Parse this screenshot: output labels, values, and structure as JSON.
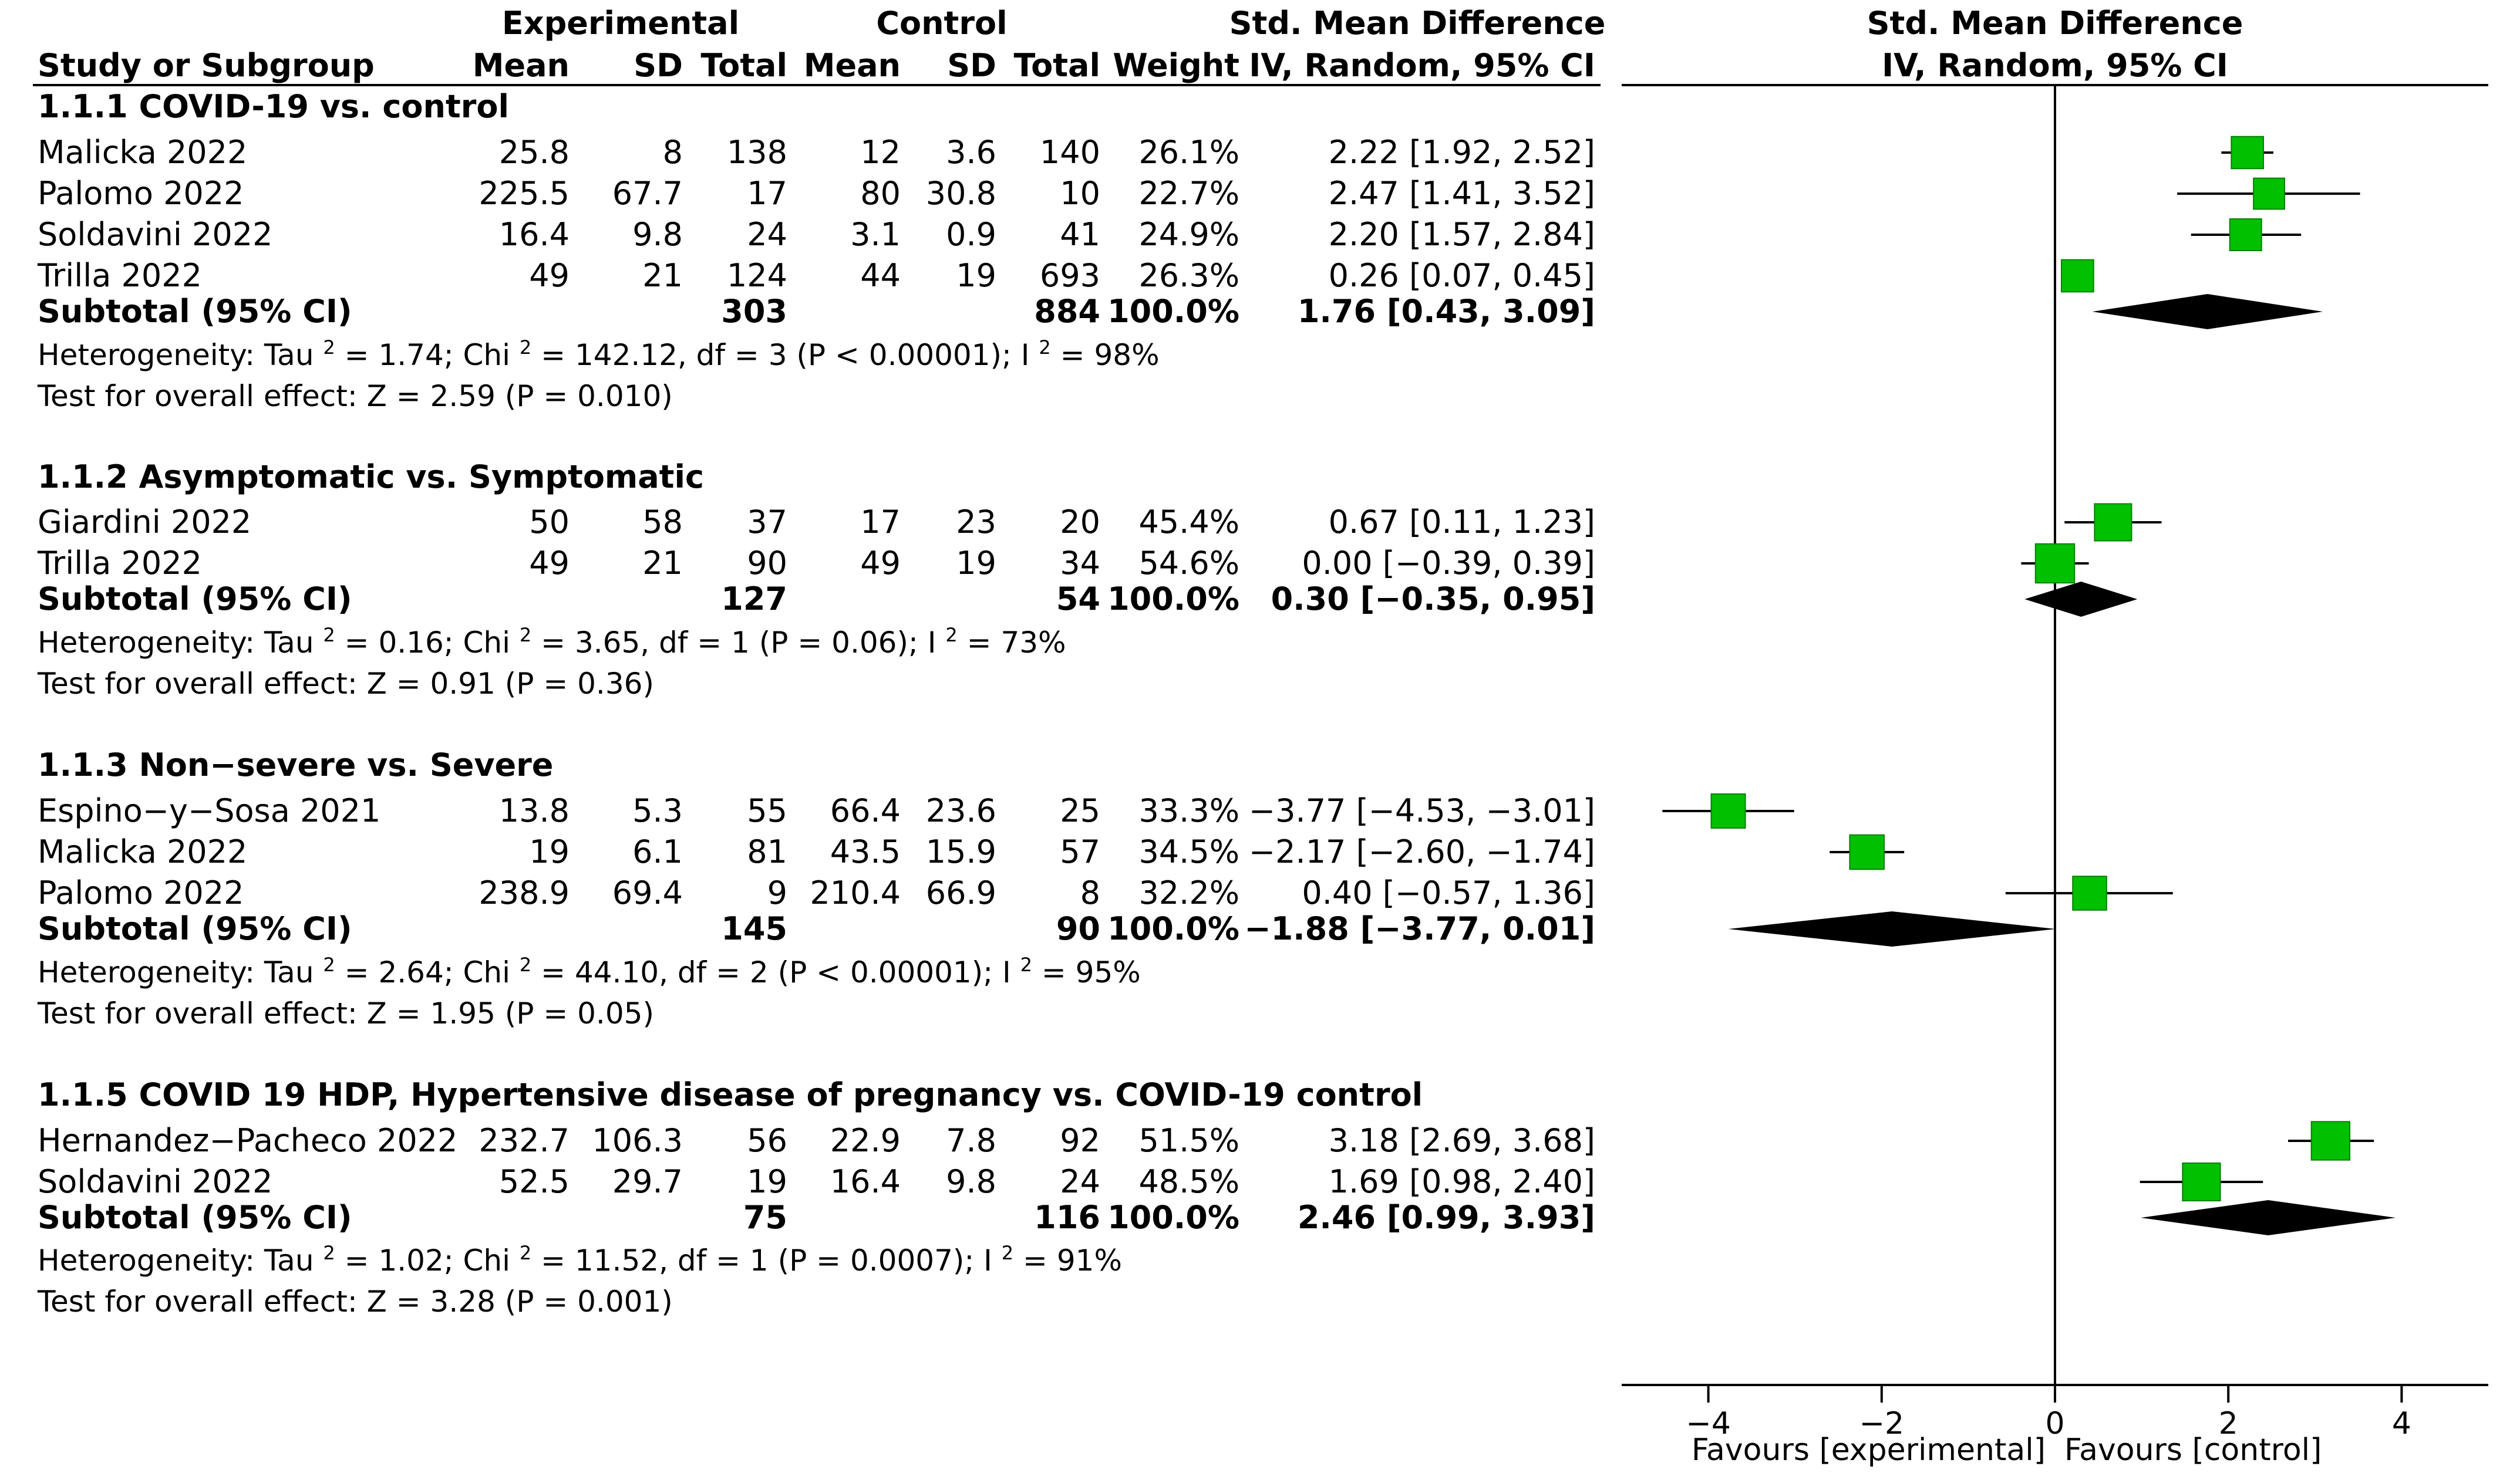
{
  "headers": {
    "experimental": "Experimental",
    "control": "Control",
    "smd_table": "Std. Mean Difference",
    "smd_plot": "Std. Mean Difference",
    "study_or_subgroup": "Study or Subgroup",
    "mean_e": "Mean",
    "sd_e": "SD",
    "total_e": "Total",
    "mean_c": "Mean",
    "sd_c": "SD",
    "total_c": "Total",
    "weight": "Weight",
    "method_table": "IV, Random, 95% CI",
    "method_plot": "IV, Random, 95% CI"
  },
  "groups": [
    {
      "title": "1.1.1 COVID-19 vs. control",
      "studies": [
        {
          "name": "Malicka 2022",
          "mean_e": "25.8",
          "sd_e": "8",
          "n_e": "138",
          "mean_c": "12",
          "sd_c": "3.6",
          "n_c": "140",
          "weight": "26.1%",
          "ci_text": "2.22 [1.92, 2.52]"
        },
        {
          "name": "Palomo 2022",
          "mean_e": "225.5",
          "sd_e": "67.7",
          "n_e": "17",
          "mean_c": "80",
          "sd_c": "30.8",
          "n_c": "10",
          "weight": "22.7%",
          "ci_text": "2.47 [1.41, 3.52]"
        },
        {
          "name": "Soldavini 2022",
          "mean_e": "16.4",
          "sd_e": "9.8",
          "n_e": "24",
          "mean_c": "3.1",
          "sd_c": "0.9",
          "n_c": "41",
          "weight": "24.9%",
          "ci_text": "2.20 [1.57, 2.84]"
        },
        {
          "name": "Trilla 2022",
          "mean_e": "49",
          "sd_e": "21",
          "n_e": "124",
          "mean_c": "44",
          "sd_c": "19",
          "n_c": "693",
          "weight": "26.3%",
          "ci_text": "0.26 [0.07, 0.45]"
        }
      ],
      "subtotal": {
        "label": "Subtotal (95% CI)",
        "n_e": "303",
        "n_c": "884",
        "weight": "100.0%",
        "ci_text": "1.76 [0.43, 3.09]"
      },
      "heterogeneity": {
        "pre": "Heterogeneity: Tau",
        "mid": "= 1.74; Chi",
        "post": "= 142.12, df = 3 (P < 0.00001); I",
        "end": "= 98%"
      },
      "overall": "Test for overall effect: Z = 2.59 (P = 0.010)"
    },
    {
      "title": "1.1.2 Asymptomatic vs. Symptomatic",
      "studies": [
        {
          "name": "Giardini 2022",
          "mean_e": "50",
          "sd_e": "58",
          "n_e": "37",
          "mean_c": "17",
          "sd_c": "23",
          "n_c": "20",
          "weight": "45.4%",
          "ci_text": "0.67 [0.11, 1.23]"
        },
        {
          "name": "Trilla 2022",
          "mean_e": "49",
          "sd_e": "21",
          "n_e": "90",
          "mean_c": "49",
          "sd_c": "19",
          "n_c": "34",
          "weight": "54.6%",
          "ci_text": "0.00 [−0.39, 0.39]"
        }
      ],
      "subtotal": {
        "label": "Subtotal (95% CI)",
        "n_e": "127",
        "n_c": "54",
        "weight": "100.0%",
        "ci_text": "0.30 [−0.35, 0.95]"
      },
      "heterogeneity": {
        "pre": "Heterogeneity: Tau",
        "mid": "= 0.16; Chi",
        "post": "= 3.65, df = 1 (P = 0.06); I",
        "end": "= 73%"
      },
      "overall": "Test for overall effect: Z = 0.91 (P = 0.36)"
    },
    {
      "title": "1.1.3 Non−severe vs. Severe",
      "studies": [
        {
          "name": "Espino−y−Sosa 2021",
          "mean_e": "13.8",
          "sd_e": "5.3",
          "n_e": "55",
          "mean_c": "66.4",
          "sd_c": "23.6",
          "n_c": "25",
          "weight": "33.3%",
          "ci_text": "−3.77 [−4.53, −3.01]"
        },
        {
          "name": "Malicka 2022",
          "mean_e": "19",
          "sd_e": "6.1",
          "n_e": "81",
          "mean_c": "43.5",
          "sd_c": "15.9",
          "n_c": "57",
          "weight": "34.5%",
          "ci_text": "−2.17 [−2.60, −1.74]"
        },
        {
          "name": "Palomo 2022",
          "mean_e": "238.9",
          "sd_e": "69.4",
          "n_e": "9",
          "mean_c": "210.4",
          "sd_c": "66.9",
          "n_c": "8",
          "weight": "32.2%",
          "ci_text": "0.40 [−0.57, 1.36]"
        }
      ],
      "subtotal": {
        "label": "Subtotal (95% CI)",
        "n_e": "145",
        "n_c": "90",
        "weight": "100.0%",
        "ci_text": "−1.88 [−3.77, 0.01]"
      },
      "heterogeneity": {
        "pre": "Heterogeneity: Tau",
        "mid": "= 2.64; Chi",
        "post": "= 44.10, df = 2 (P < 0.00001); I",
        "end": "= 95%"
      },
      "overall": "Test for overall effect: Z = 1.95 (P = 0.05)"
    },
    {
      "title": "1.1.5 COVID 19 HDP, Hypertensive disease of pregnancy vs. COVID-19 control",
      "studies": [
        {
          "name": "Hernandez−Pacheco 2022",
          "mean_e": "232.7",
          "sd_e": "106.3",
          "n_e": "56",
          "mean_c": "22.9",
          "sd_c": "7.8",
          "n_c": "92",
          "weight": "51.5%",
          "ci_text": "3.18 [2.69, 3.68]"
        },
        {
          "name": "Soldavini 2022",
          "mean_e": "52.5",
          "sd_e": "29.7",
          "n_e": "19",
          "mean_c": "16.4",
          "sd_c": "9.8",
          "n_c": "24",
          "weight": "48.5%",
          "ci_text": "1.69 [0.98, 2.40]"
        }
      ],
      "subtotal": {
        "label": "Subtotal (95% CI)",
        "n_e": "75",
        "n_c": "116",
        "weight": "100.0%",
        "ci_text": "2.46 [0.99, 3.93]"
      },
      "heterogeneity": {
        "pre": "Heterogeneity: Tau",
        "mid": "= 1.02; Chi",
        "post": "= 11.52, df = 1 (P = 0.0007); I",
        "end": "= 91%"
      },
      "overall": "Test for overall effect: Z = 3.28 (P = 0.001)"
    }
  ],
  "axis": {
    "ticks": [
      "−4",
      "−2",
      "0",
      "2",
      "4"
    ],
    "favours_left": "Favours [experimental]",
    "favours_right": "Favours [control]",
    "squared": "2"
  },
  "colors": {
    "study_marker": "#00c000",
    "diamond": "#000000",
    "text": "#000000"
  },
  "chart_data": {
    "type": "forest",
    "title": "Std. Mean Difference",
    "xlabel": "",
    "ylabel": "",
    "xlim": [
      -5,
      5
    ],
    "x_ticks": [
      -4,
      -2,
      0,
      2,
      4
    ],
    "grid": false,
    "null_line": 0,
    "series": [
      {
        "group": "1.1.1 COVID-19 vs. control",
        "kind": "study",
        "name": "Malicka 2022",
        "est": 2.22,
        "lo": 1.92,
        "hi": 2.52,
        "weight": 26.1
      },
      {
        "group": "1.1.1 COVID-19 vs. control",
        "kind": "study",
        "name": "Palomo 2022",
        "est": 2.47,
        "lo": 1.41,
        "hi": 3.52,
        "weight": 22.7
      },
      {
        "group": "1.1.1 COVID-19 vs. control",
        "kind": "study",
        "name": "Soldavini 2022",
        "est": 2.2,
        "lo": 1.57,
        "hi": 2.84,
        "weight": 24.9
      },
      {
        "group": "1.1.1 COVID-19 vs. control",
        "kind": "study",
        "name": "Trilla 2022",
        "est": 0.26,
        "lo": 0.07,
        "hi": 0.45,
        "weight": 26.3
      },
      {
        "group": "1.1.1 COVID-19 vs. control",
        "kind": "subtotal",
        "name": "Subtotal (95% CI)",
        "est": 1.76,
        "lo": 0.43,
        "hi": 3.09,
        "weight": 100.0
      },
      {
        "group": "1.1.2 Asymptomatic vs. Symptomatic",
        "kind": "study",
        "name": "Giardini 2022",
        "est": 0.67,
        "lo": 0.11,
        "hi": 1.23,
        "weight": 45.4
      },
      {
        "group": "1.1.2 Asymptomatic vs. Symptomatic",
        "kind": "study",
        "name": "Trilla 2022",
        "est": 0.0,
        "lo": -0.39,
        "hi": 0.39,
        "weight": 54.6
      },
      {
        "group": "1.1.2 Asymptomatic vs. Symptomatic",
        "kind": "subtotal",
        "name": "Subtotal (95% CI)",
        "est": 0.3,
        "lo": -0.35,
        "hi": 0.95,
        "weight": 100.0
      },
      {
        "group": "1.1.3 Non−severe vs. Severe",
        "kind": "study",
        "name": "Espino−y−Sosa 2021",
        "est": -3.77,
        "lo": -4.53,
        "hi": -3.01,
        "weight": 33.3
      },
      {
        "group": "1.1.3 Non−severe vs. Severe",
        "kind": "study",
        "name": "Malicka 2022",
        "est": -2.17,
        "lo": -2.6,
        "hi": -1.74,
        "weight": 34.5
      },
      {
        "group": "1.1.3 Non−severe vs. Severe",
        "kind": "study",
        "name": "Palomo 2022",
        "est": 0.4,
        "lo": -0.57,
        "hi": 1.36,
        "weight": 32.2
      },
      {
        "group": "1.1.3 Non−severe vs. Severe",
        "kind": "subtotal",
        "name": "Subtotal (95% CI)",
        "est": -1.88,
        "lo": -3.77,
        "hi": 0.01,
        "weight": 100.0
      },
      {
        "group": "1.1.5 COVID 19 HDP, Hypertensive disease of pregnancy vs. COVID-19 control",
        "kind": "study",
        "name": "Hernandez−Pacheco 2022",
        "est": 3.18,
        "lo": 2.69,
        "hi": 3.68,
        "weight": 51.5
      },
      {
        "group": "1.1.5 COVID 19 HDP, Hypertensive disease of pregnancy vs. COVID-19 control",
        "kind": "study",
        "name": "Soldavini 2022",
        "est": 1.69,
        "lo": 0.98,
        "hi": 2.4,
        "weight": 48.5
      },
      {
        "group": "1.1.5 COVID 19 HDP, Hypertensive disease of pregnancy vs. COVID-19 control",
        "kind": "subtotal",
        "name": "Subtotal (95% CI)",
        "est": 2.46,
        "lo": 0.99,
        "hi": 3.93,
        "weight": 100.0
      }
    ]
  }
}
